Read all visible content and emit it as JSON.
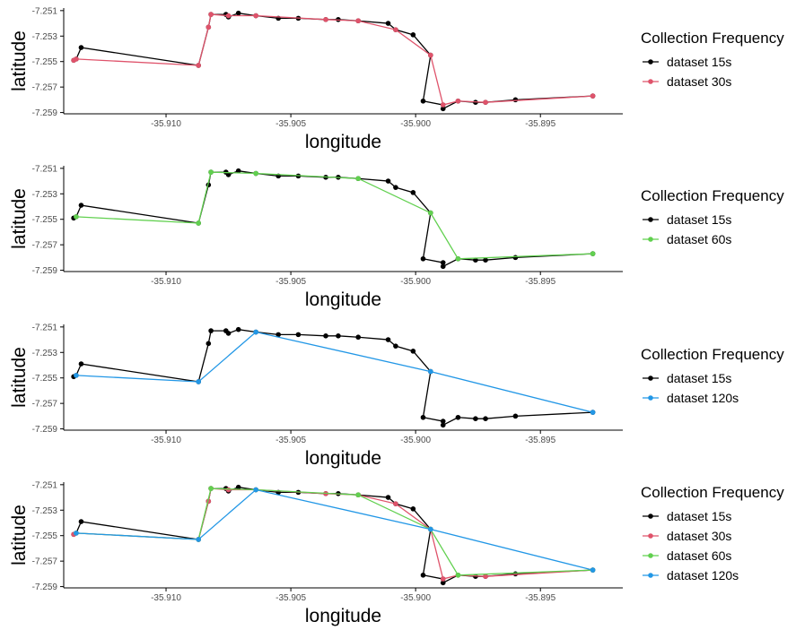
{
  "colors": {
    "dataset 15s": "#000000",
    "dataset 30s": "#DF536B",
    "dataset 60s": "#61D04F",
    "dataset 120s": "#2297E6",
    "axis": "#000000",
    "tick_text": "#4d4d4d"
  },
  "chart_data": [
    {
      "type": "line",
      "xlabel": "longitude",
      "ylabel": "latitude",
      "xlim": [
        -35.9141,
        -35.8917
      ],
      "ylim": [
        -7.2591,
        -7.2508
      ],
      "x_ticks": [
        "-35.910",
        "-35.905",
        "-35.900",
        "-35.895"
      ],
      "y_ticks": [
        "-7.251",
        "-7.253",
        "-7.255",
        "-7.257",
        "-7.259"
      ],
      "grid": false,
      "legend_title": "Collection Frequency",
      "legend_position": "right",
      "series": [
        {
          "name": "dataset 15s",
          "points": [
            [
              -35.9137,
              -7.2549
            ],
            [
              -35.9136,
              -7.2548
            ],
            [
              -35.9134,
              -7.2539
            ],
            [
              -35.9087,
              -7.2553
            ],
            [
              -35.9083,
              -7.2523
            ],
            [
              -35.9082,
              -7.2513
            ],
            [
              -35.9076,
              -7.2513
            ],
            [
              -35.9075,
              -7.2515
            ],
            [
              -35.9071,
              -7.2512
            ],
            [
              -35.9064,
              -7.2514
            ],
            [
              -35.9055,
              -7.2516
            ],
            [
              -35.9047,
              -7.2516
            ],
            [
              -35.9036,
              -7.2517
            ],
            [
              -35.9031,
              -7.2517
            ],
            [
              -35.9023,
              -7.2518
            ],
            [
              -35.9011,
              -7.252
            ],
            [
              -35.9008,
              -7.2525
            ],
            [
              -35.9001,
              -7.2529
            ],
            [
              -35.8994,
              -7.2545
            ],
            [
              -35.8997,
              -7.2581
            ],
            [
              -35.8989,
              -7.2584
            ],
            [
              -35.8989,
              -7.2587
            ],
            [
              -35.8983,
              -7.2581
            ],
            [
              -35.8976,
              -7.2582
            ],
            [
              -35.8972,
              -7.2582
            ],
            [
              -35.896,
              -7.258
            ],
            [
              -35.8929,
              -7.2577
            ]
          ]
        },
        {
          "name": "dataset 30s",
          "points": [
            [
              -35.9137,
              -7.2549
            ],
            [
              -35.9136,
              -7.2548
            ],
            [
              -35.9087,
              -7.2553
            ],
            [
              -35.9083,
              -7.2523
            ],
            [
              -35.9082,
              -7.2513
            ],
            [
              -35.9075,
              -7.2514
            ],
            [
              -35.9064,
              -7.2514
            ],
            [
              -35.9036,
              -7.2517
            ],
            [
              -35.9023,
              -7.2518
            ],
            [
              -35.9008,
              -7.2525
            ],
            [
              -35.8994,
              -7.2545
            ],
            [
              -35.8989,
              -7.2584
            ],
            [
              -35.8983,
              -7.2581
            ],
            [
              -35.8972,
              -7.2582
            ],
            [
              -35.8929,
              -7.2577
            ]
          ]
        }
      ]
    },
    {
      "type": "line",
      "xlabel": "longitude",
      "ylabel": "latitude",
      "xlim": [
        -35.9141,
        -35.8917
      ],
      "ylim": [
        -7.2591,
        -7.2508
      ],
      "x_ticks": [
        "-35.910",
        "-35.905",
        "-35.900",
        "-35.895"
      ],
      "y_ticks": [
        "-7.251",
        "-7.253",
        "-7.255",
        "-7.257",
        "-7.259"
      ],
      "grid": false,
      "legend_title": "Collection Frequency",
      "legend_position": "right",
      "series": [
        {
          "name": "dataset 15s",
          "points": [
            [
              -35.9137,
              -7.2549
            ],
            [
              -35.9136,
              -7.2548
            ],
            [
              -35.9134,
              -7.2539
            ],
            [
              -35.9087,
              -7.2553
            ],
            [
              -35.9083,
              -7.2523
            ],
            [
              -35.9082,
              -7.2513
            ],
            [
              -35.9076,
              -7.2513
            ],
            [
              -35.9075,
              -7.2515
            ],
            [
              -35.9071,
              -7.2512
            ],
            [
              -35.9064,
              -7.2514
            ],
            [
              -35.9055,
              -7.2516
            ],
            [
              -35.9047,
              -7.2516
            ],
            [
              -35.9036,
              -7.2517
            ],
            [
              -35.9031,
              -7.2517
            ],
            [
              -35.9023,
              -7.2518
            ],
            [
              -35.9011,
              -7.252
            ],
            [
              -35.9008,
              -7.2525
            ],
            [
              -35.9001,
              -7.2529
            ],
            [
              -35.8994,
              -7.2545
            ],
            [
              -35.8997,
              -7.2581
            ],
            [
              -35.8989,
              -7.2584
            ],
            [
              -35.8989,
              -7.2587
            ],
            [
              -35.8983,
              -7.2581
            ],
            [
              -35.8976,
              -7.2582
            ],
            [
              -35.8972,
              -7.2582
            ],
            [
              -35.896,
              -7.258
            ],
            [
              -35.8929,
              -7.2577
            ]
          ]
        },
        {
          "name": "dataset 60s",
          "points": [
            [
              -35.9136,
              -7.2548
            ],
            [
              -35.9087,
              -7.2553
            ],
            [
              -35.9082,
              -7.2513
            ],
            [
              -35.9064,
              -7.2514
            ],
            [
              -35.9023,
              -7.2518
            ],
            [
              -35.8994,
              -7.2545
            ],
            [
              -35.8983,
              -7.2581
            ],
            [
              -35.8929,
              -7.2577
            ]
          ]
        }
      ]
    },
    {
      "type": "line",
      "xlabel": "longitude",
      "ylabel": "latitude",
      "xlim": [
        -35.9141,
        -35.8917
      ],
      "ylim": [
        -7.2591,
        -7.2508
      ],
      "x_ticks": [
        "-35.910",
        "-35.905",
        "-35.900",
        "-35.895"
      ],
      "y_ticks": [
        "-7.251",
        "-7.253",
        "-7.255",
        "-7.257",
        "-7.259"
      ],
      "grid": false,
      "legend_title": "Collection Frequency",
      "legend_position": "right",
      "series": [
        {
          "name": "dataset 15s",
          "points": [
            [
              -35.9137,
              -7.2549
            ],
            [
              -35.9136,
              -7.2548
            ],
            [
              -35.9134,
              -7.2539
            ],
            [
              -35.9087,
              -7.2553
            ],
            [
              -35.9083,
              -7.2523
            ],
            [
              -35.9082,
              -7.2513
            ],
            [
              -35.9076,
              -7.2513
            ],
            [
              -35.9075,
              -7.2515
            ],
            [
              -35.9071,
              -7.2512
            ],
            [
              -35.9064,
              -7.2514
            ],
            [
              -35.9055,
              -7.2516
            ],
            [
              -35.9047,
              -7.2516
            ],
            [
              -35.9036,
              -7.2517
            ],
            [
              -35.9031,
              -7.2517
            ],
            [
              -35.9023,
              -7.2518
            ],
            [
              -35.9011,
              -7.252
            ],
            [
              -35.9008,
              -7.2525
            ],
            [
              -35.9001,
              -7.2529
            ],
            [
              -35.8994,
              -7.2545
            ],
            [
              -35.8997,
              -7.2581
            ],
            [
              -35.8989,
              -7.2584
            ],
            [
              -35.8989,
              -7.2587
            ],
            [
              -35.8983,
              -7.2581
            ],
            [
              -35.8976,
              -7.2582
            ],
            [
              -35.8972,
              -7.2582
            ],
            [
              -35.896,
              -7.258
            ],
            [
              -35.8929,
              -7.2577
            ]
          ]
        },
        {
          "name": "dataset 120s",
          "points": [
            [
              -35.9136,
              -7.2548
            ],
            [
              -35.9087,
              -7.2553
            ],
            [
              -35.9064,
              -7.2514
            ],
            [
              -35.8994,
              -7.2545
            ],
            [
              -35.8929,
              -7.2577
            ]
          ]
        }
      ]
    },
    {
      "type": "line",
      "xlabel": "longitude",
      "ylabel": "latitude",
      "xlim": [
        -35.9141,
        -35.8917
      ],
      "ylim": [
        -7.2591,
        -7.2508
      ],
      "x_ticks": [
        "-35.910",
        "-35.905",
        "-35.900",
        "-35.895"
      ],
      "y_ticks": [
        "-7.251",
        "-7.253",
        "-7.255",
        "-7.257",
        "-7.259"
      ],
      "grid": false,
      "legend_title": "Collection Frequency",
      "legend_position": "right",
      "series": [
        {
          "name": "dataset 15s",
          "points": [
            [
              -35.9137,
              -7.2549
            ],
            [
              -35.9136,
              -7.2548
            ],
            [
              -35.9134,
              -7.2539
            ],
            [
              -35.9087,
              -7.2553
            ],
            [
              -35.9083,
              -7.2523
            ],
            [
              -35.9082,
              -7.2513
            ],
            [
              -35.9076,
              -7.2513
            ],
            [
              -35.9075,
              -7.2515
            ],
            [
              -35.9071,
              -7.2512
            ],
            [
              -35.9064,
              -7.2514
            ],
            [
              -35.9055,
              -7.2516
            ],
            [
              -35.9047,
              -7.2516
            ],
            [
              -35.9036,
              -7.2517
            ],
            [
              -35.9031,
              -7.2517
            ],
            [
              -35.9023,
              -7.2518
            ],
            [
              -35.9011,
              -7.252
            ],
            [
              -35.9008,
              -7.2525
            ],
            [
              -35.9001,
              -7.2529
            ],
            [
              -35.8994,
              -7.2545
            ],
            [
              -35.8997,
              -7.2581
            ],
            [
              -35.8989,
              -7.2584
            ],
            [
              -35.8989,
              -7.2587
            ],
            [
              -35.8983,
              -7.2581
            ],
            [
              -35.8976,
              -7.2582
            ],
            [
              -35.8972,
              -7.2582
            ],
            [
              -35.896,
              -7.258
            ],
            [
              -35.8929,
              -7.2577
            ]
          ]
        },
        {
          "name": "dataset 30s",
          "points": [
            [
              -35.9137,
              -7.2549
            ],
            [
              -35.9136,
              -7.2548
            ],
            [
              -35.9087,
              -7.2553
            ],
            [
              -35.9083,
              -7.2523
            ],
            [
              -35.9082,
              -7.2513
            ],
            [
              -35.9075,
              -7.2514
            ],
            [
              -35.9064,
              -7.2514
            ],
            [
              -35.9036,
              -7.2517
            ],
            [
              -35.9023,
              -7.2518
            ],
            [
              -35.9008,
              -7.2525
            ],
            [
              -35.8994,
              -7.2545
            ],
            [
              -35.8989,
              -7.2584
            ],
            [
              -35.8983,
              -7.2581
            ],
            [
              -35.8972,
              -7.2582
            ],
            [
              -35.8929,
              -7.2577
            ]
          ]
        },
        {
          "name": "dataset 60s",
          "points": [
            [
              -35.9136,
              -7.2548
            ],
            [
              -35.9087,
              -7.2553
            ],
            [
              -35.9082,
              -7.2513
            ],
            [
              -35.9064,
              -7.2514
            ],
            [
              -35.9023,
              -7.2518
            ],
            [
              -35.8994,
              -7.2545
            ],
            [
              -35.8983,
              -7.2581
            ],
            [
              -35.8929,
              -7.2577
            ]
          ]
        },
        {
          "name": "dataset 120s",
          "points": [
            [
              -35.9136,
              -7.2548
            ],
            [
              -35.9087,
              -7.2553
            ],
            [
              -35.9064,
              -7.2514
            ],
            [
              -35.8994,
              -7.2545
            ],
            [
              -35.8929,
              -7.2577
            ]
          ]
        }
      ]
    }
  ]
}
